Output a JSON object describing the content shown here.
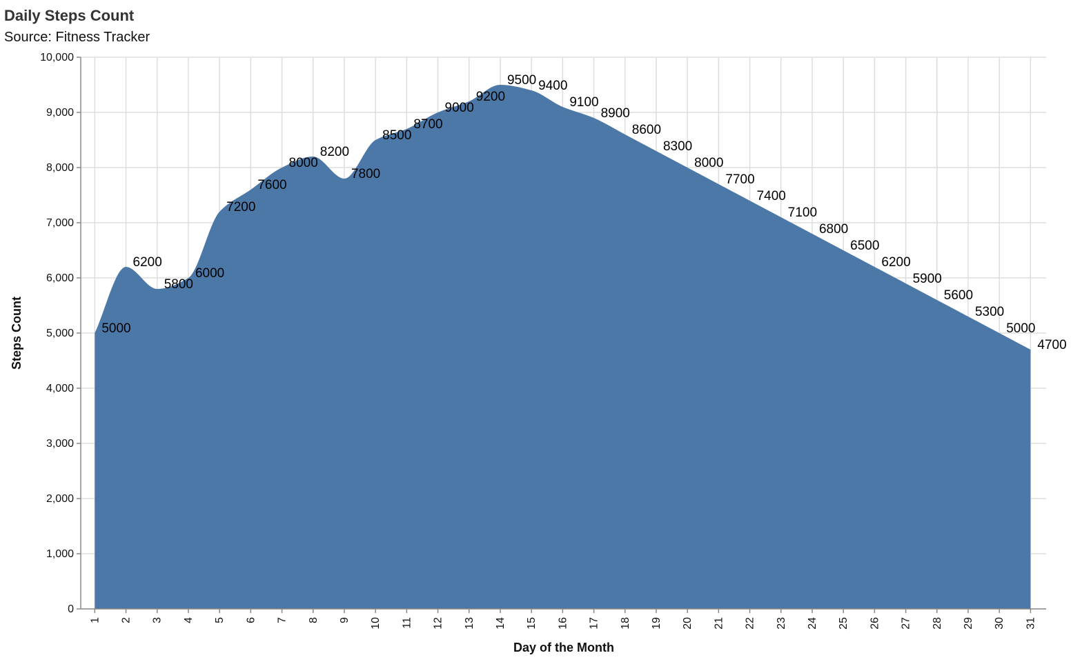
{
  "chart_data": {
    "type": "area",
    "title": "Daily Steps Count",
    "subtitle": "Source: Fitness Tracker",
    "xlabel": "Day of the Month",
    "ylabel": "Steps Count",
    "x": [
      1,
      2,
      3,
      4,
      5,
      6,
      7,
      8,
      9,
      10,
      11,
      12,
      13,
      14,
      15,
      16,
      17,
      18,
      19,
      20,
      21,
      22,
      23,
      24,
      25,
      26,
      27,
      28,
      29,
      30,
      31
    ],
    "values": [
      5000,
      6200,
      5800,
      6000,
      7200,
      7600,
      8000,
      8200,
      7800,
      8500,
      8700,
      9000,
      9200,
      9500,
      9400,
      9100,
      8900,
      8600,
      8300,
      8000,
      7700,
      7400,
      7100,
      6800,
      6500,
      6200,
      5900,
      5600,
      5300,
      5000,
      4700
    ],
    "ylim": [
      0,
      10000
    ],
    "yticks": [
      "0",
      "1,000",
      "2,000",
      "3,000",
      "4,000",
      "5,000",
      "6,000",
      "7,000",
      "8,000",
      "9,000",
      "10,000"
    ],
    "xticks": [
      "1",
      "2",
      "3",
      "4",
      "5",
      "6",
      "7",
      "8",
      "9",
      "10",
      "11",
      "12",
      "13",
      "14",
      "15",
      "16",
      "17",
      "18",
      "19",
      "20",
      "21",
      "22",
      "23",
      "24",
      "25",
      "26",
      "27",
      "28",
      "29",
      "30",
      "31"
    ],
    "grid": true,
    "color": "#4c78a8"
  }
}
